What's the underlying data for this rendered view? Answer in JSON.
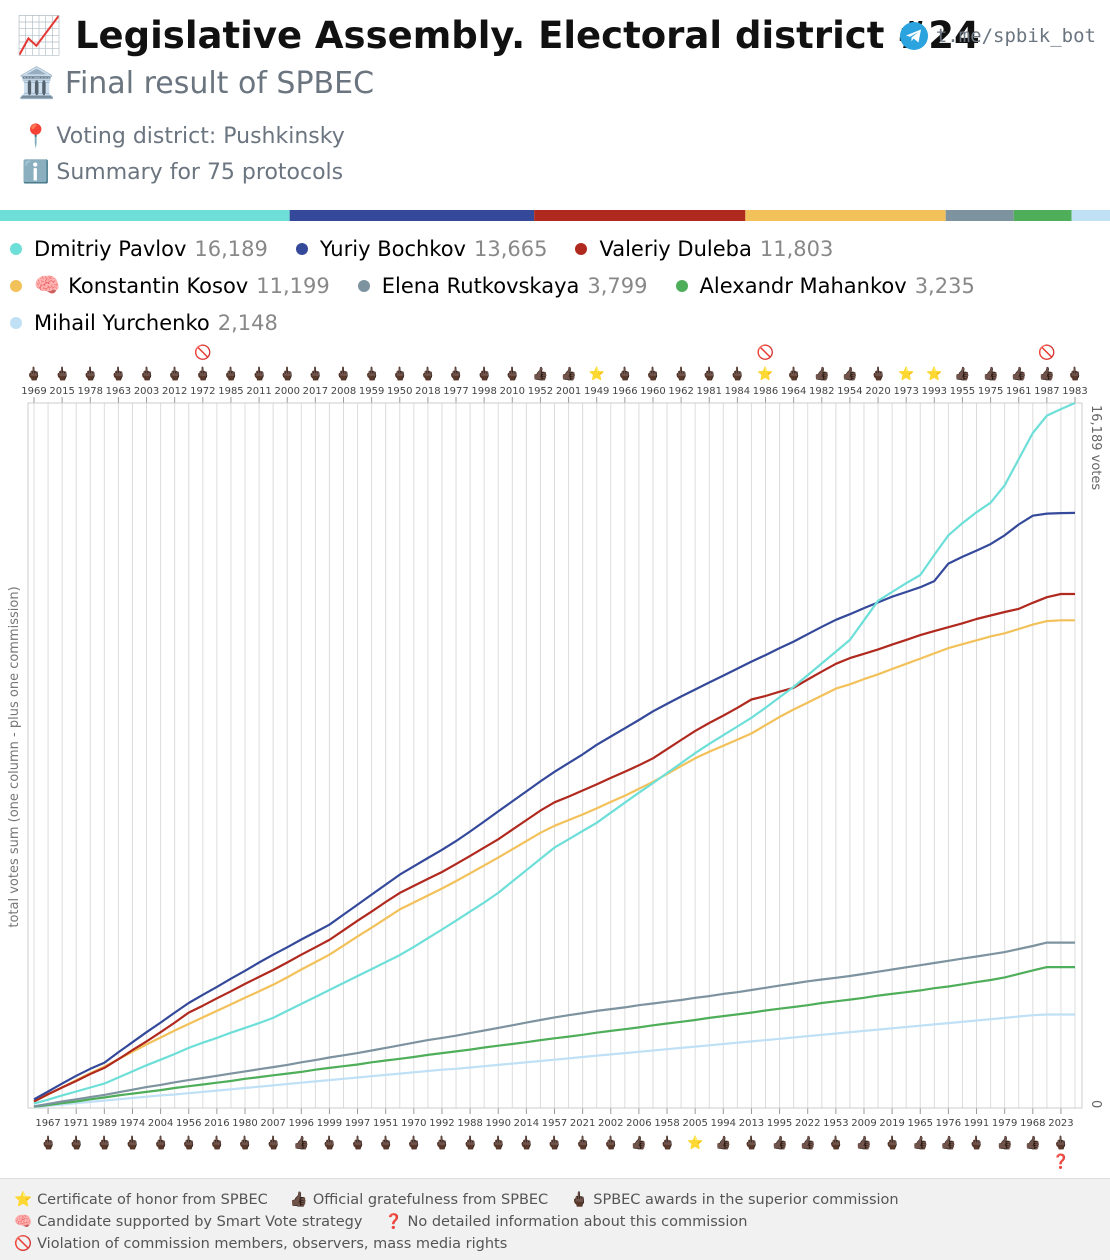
{
  "header": {
    "title": "📈 Legislative Assembly. Electoral district #24",
    "subtitle": "🏛️ Final result of SPBEC",
    "district": "📍 Voting district: Pushkinsky",
    "summary": "ℹ️ Summary for 75 protocols",
    "bot": "t.me/spbik_bot"
  },
  "chart_data": {
    "type": "line",
    "y_title": "total votes sum (one column - plus one commission)",
    "ylim": [
      0,
      16189
    ],
    "yticks": [
      0,
      {
        "value": 16189,
        "label": "16,189 votes"
      }
    ],
    "categories": [
      "1969",
      "1967",
      "2015",
      "1971",
      "1978",
      "1989",
      "1963",
      "1974",
      "2003",
      "2004",
      "2012",
      "1956",
      "1972",
      "2016",
      "1985",
      "1980",
      "2011",
      "2007",
      "2000",
      "1996",
      "2017",
      "1999",
      "2008",
      "1997",
      "1959",
      "1951",
      "1950",
      "1970",
      "2018",
      "1992",
      "1977",
      "1988",
      "1998",
      "1990",
      "2010",
      "2014",
      "1952",
      "1957",
      "2001",
      "2021",
      "1949",
      "2002",
      "1966",
      "2006",
      "1960",
      "1958",
      "1962",
      "2005",
      "1981",
      "1994",
      "1984",
      "2013",
      "1986",
      "1995",
      "1964",
      "2022",
      "1982",
      "1953",
      "1954",
      "2009",
      "2020",
      "2019",
      "1973",
      "1965",
      "1993",
      "1976",
      "1955",
      "1991",
      "1975",
      "1979",
      "1961",
      "1968",
      "1987",
      "2023",
      "1983"
    ],
    "award_icons": [
      "🖕🏿",
      "🖕🏿",
      "🖕🏿",
      "🖕🏿",
      "🖕🏿",
      "🖕🏿",
      "🖕🏿",
      "🖕🏿",
      "🖕🏿",
      "🖕🏿",
      "🖕🏿",
      "🖕🏿",
      "🖕🏿",
      "🖕🏿",
      "🖕🏿",
      "🖕🏿",
      "🖕🏿",
      "🖕🏿",
      "🖕🏿",
      "👍🏿",
      "🖕🏿",
      "🖕🏿",
      "🖕🏿",
      "🖕🏿",
      "🖕🏿",
      "🖕🏿",
      "🖕🏿",
      "🖕🏿",
      "🖕🏿",
      "🖕🏿",
      "🖕🏿",
      "🖕🏿",
      "🖕🏿",
      "🖕🏿",
      "🖕🏿",
      "🖕🏿",
      "👍🏿",
      "🖕🏿",
      "👍🏿",
      "🖕🏿",
      "⭐",
      "🖕🏿",
      "🖕🏿",
      "👍🏿",
      "🖕🏿",
      "🖕🏿",
      "🖕🏿",
      "⭐",
      "🖕🏿",
      "👍🏿",
      "🖕🏿",
      "🖕🏿",
      "⭐",
      "👍🏿",
      "🖕🏿",
      "👍🏿",
      "👍🏿",
      "🖕🏿",
      "👍🏿",
      "👍🏿",
      "🖕🏿",
      "🖕🏿",
      "⭐",
      "👍🏿",
      "⭐",
      "👍🏿",
      "👍🏿",
      "🖕🏿",
      "👍🏿",
      "👍🏿",
      "👍🏿",
      "👍🏿",
      "👍🏿",
      "🖕🏿",
      "🖕🏿"
    ],
    "flags": [
      null,
      null,
      null,
      null,
      null,
      null,
      null,
      null,
      null,
      null,
      null,
      null,
      "🚫",
      null,
      null,
      null,
      null,
      null,
      null,
      null,
      null,
      null,
      null,
      null,
      null,
      null,
      null,
      null,
      null,
      null,
      null,
      null,
      null,
      null,
      null,
      null,
      null,
      null,
      null,
      null,
      null,
      null,
      null,
      null,
      null,
      null,
      null,
      null,
      null,
      null,
      null,
      null,
      "🚫",
      null,
      null,
      null,
      null,
      null,
      null,
      null,
      null,
      null,
      null,
      null,
      null,
      null,
      null,
      null,
      null,
      null,
      null,
      null,
      "🚫",
      "❓",
      null
    ],
    "series": [
      {
        "name": "Dmitriy Pavlov",
        "color": "#6ddfd8",
        "total": 16189,
        "total_label": "16,189",
        "values": [
          100,
          190,
          290,
          380,
          470,
          560,
          700,
          840,
          980,
          1110,
          1240,
          1380,
          1500,
          1610,
          1730,
          1840,
          1950,
          2070,
          2230,
          2390,
          2550,
          2710,
          2870,
          3030,
          3190,
          3350,
          3510,
          3700,
          3900,
          4100,
          4300,
          4510,
          4720,
          4940,
          5200,
          5460,
          5720,
          5980,
          6170,
          6360,
          6550,
          6780,
          7010,
          7240,
          7460,
          7690,
          7920,
          8150,
          8360,
          8560,
          8760,
          8960,
          9190,
          9430,
          9670,
          9940,
          10210,
          10480,
          10750,
          11200,
          11650,
          11850,
          12050,
          12240,
          12700,
          13150,
          13430,
          13680,
          13900,
          14300,
          14900,
          15500,
          15900,
          16050,
          16189
        ]
      },
      {
        "name": "Yuriy Bochkov",
        "color": "#34499a",
        "total": 13665,
        "total_label": "13,665",
        "values": [
          200,
          380,
          560,
          740,
          900,
          1040,
          1280,
          1510,
          1740,
          1960,
          2190,
          2410,
          2600,
          2780,
          2970,
          3150,
          3340,
          3520,
          3690,
          3870,
          4040,
          4210,
          4440,
          4670,
          4900,
          5130,
          5360,
          5550,
          5740,
          5930,
          6130,
          6350,
          6580,
          6810,
          7040,
          7270,
          7500,
          7720,
          7920,
          8120,
          8340,
          8530,
          8720,
          8910,
          9110,
          9280,
          9450,
          9610,
          9770,
          9930,
          10090,
          10250,
          10400,
          10560,
          10710,
          10880,
          11050,
          11210,
          11340,
          11480,
          11610,
          11740,
          11850,
          11960,
          12100,
          12500,
          12660,
          12800,
          12950,
          13150,
          13400,
          13600,
          13650,
          13660,
          13665
        ]
      },
      {
        "name": "Valeriy Duleba",
        "color": "#b0291f",
        "total": 11803,
        "total_label": "11,803",
        "values": [
          150,
          320,
          470,
          620,
          780,
          920,
          1120,
          1330,
          1530,
          1740,
          1960,
          2190,
          2350,
          2520,
          2680,
          2850,
          3010,
          3170,
          3340,
          3520,
          3690,
          3860,
          4080,
          4300,
          4510,
          4730,
          4940,
          5100,
          5260,
          5420,
          5600,
          5790,
          5980,
          6170,
          6390,
          6610,
          6830,
          7020,
          7150,
          7290,
          7430,
          7580,
          7720,
          7870,
          8030,
          8240,
          8450,
          8660,
          8840,
          9010,
          9190,
          9380,
          9460,
          9560,
          9650,
          9840,
          10020,
          10200,
          10330,
          10430,
          10530,
          10640,
          10750,
          10860,
          10950,
          11040,
          11130,
          11230,
          11310,
          11390,
          11460,
          11600,
          11730,
          11803,
          11803
        ]
      },
      {
        "name": "Konstantin Kosov",
        "badge": "🧠",
        "color": "#f2c15a",
        "total": 11199,
        "total_label": "11,199",
        "values": [
          150,
          310,
          470,
          640,
          800,
          950,
          1120,
          1290,
          1460,
          1620,
          1780,
          1930,
          2080,
          2230,
          2380,
          2530,
          2680,
          2830,
          3000,
          3180,
          3350,
          3520,
          3730,
          3940,
          4140,
          4350,
          4560,
          4720,
          4880,
          5040,
          5210,
          5390,
          5570,
          5750,
          5940,
          6130,
          6320,
          6480,
          6610,
          6740,
          6880,
          7030,
          7170,
          7330,
          7490,
          7670,
          7850,
          8030,
          8180,
          8320,
          8460,
          8600,
          8790,
          8980,
          9150,
          9310,
          9470,
          9630,
          9730,
          9850,
          9960,
          10080,
          10200,
          10320,
          10440,
          10560,
          10650,
          10740,
          10830,
          10900,
          11000,
          11100,
          11180,
          11199,
          11199
        ]
      },
      {
        "name": "Elena Rutkovskaya",
        "color": "#7d939f",
        "total": 3799,
        "total_label": "3,799",
        "values": [
          40,
          95,
          150,
          200,
          250,
          300,
          360,
          420,
          480,
          530,
          590,
          640,
          690,
          740,
          790,
          840,
          890,
          940,
          990,
          1050,
          1100,
          1160,
          1210,
          1260,
          1320,
          1380,
          1440,
          1500,
          1560,
          1610,
          1660,
          1720,
          1780,
          1840,
          1900,
          1960,
          2020,
          2080,
          2130,
          2180,
          2230,
          2270,
          2310,
          2360,
          2400,
          2440,
          2480,
          2530,
          2570,
          2620,
          2660,
          2710,
          2760,
          2810,
          2860,
          2910,
          2950,
          2990,
          3030,
          3080,
          3130,
          3180,
          3230,
          3280,
          3330,
          3380,
          3430,
          3480,
          3530,
          3580,
          3650,
          3720,
          3799,
          3799,
          3799
        ]
      },
      {
        "name": "Alexandr Mahankov",
        "color": "#4fae5a",
        "total": 3235,
        "total_label": "3,235",
        "values": [
          30,
          70,
          110,
          150,
          200,
          240,
          290,
          330,
          370,
          410,
          460,
          500,
          540,
          580,
          620,
          670,
          710,
          750,
          790,
          830,
          880,
          920,
          960,
          1000,
          1050,
          1090,
          1130,
          1170,
          1220,
          1260,
          1300,
          1340,
          1390,
          1430,
          1470,
          1510,
          1560,
          1600,
          1640,
          1680,
          1730,
          1770,
          1810,
          1850,
          1900,
          1940,
          1980,
          2020,
          2070,
          2110,
          2150,
          2190,
          2240,
          2280,
          2320,
          2360,
          2410,
          2450,
          2490,
          2530,
          2580,
          2620,
          2660,
          2700,
          2750,
          2790,
          2840,
          2890,
          2940,
          3000,
          3080,
          3160,
          3235,
          3235,
          3235
        ]
      },
      {
        "name": "Mihail Yurchenko",
        "color": "#bfe0f5",
        "total": 2148,
        "total_label": "2,148",
        "values": [
          20,
          50,
          80,
          110,
          140,
          170,
          200,
          230,
          260,
          290,
          310,
          340,
          370,
          400,
          430,
          460,
          490,
          520,
          550,
          580,
          610,
          640,
          670,
          700,
          730,
          760,
          790,
          820,
          850,
          880,
          900,
          930,
          960,
          990,
          1020,
          1050,
          1080,
          1110,
          1140,
          1170,
          1200,
          1230,
          1260,
          1290,
          1320,
          1350,
          1380,
          1410,
          1440,
          1470,
          1500,
          1530,
          1560,
          1590,
          1620,
          1650,
          1680,
          1710,
          1740,
          1770,
          1800,
          1830,
          1860,
          1890,
          1920,
          1950,
          1980,
          2010,
          2040,
          2070,
          2100,
          2130,
          2148,
          2148,
          2148
        ]
      }
    ],
    "grid": true
  },
  "footnotes": [
    [
      {
        "icon": "⭐",
        "text": "Certificate of honor from SPBEC"
      },
      {
        "icon": "👍🏿",
        "text": "Official gratefulness from SPBEC"
      },
      {
        "icon": "🖕🏿",
        "text": "SPBEC awards in the superior commission"
      }
    ],
    [
      {
        "icon": "🧠",
        "text": "Candidate supported by Smart Vote strategy"
      },
      {
        "icon": "❓",
        "text": "No detailed information about this commission"
      }
    ],
    [
      {
        "icon": "🚫",
        "text": "Violation of commission members, observers, mass media rights"
      }
    ]
  ]
}
